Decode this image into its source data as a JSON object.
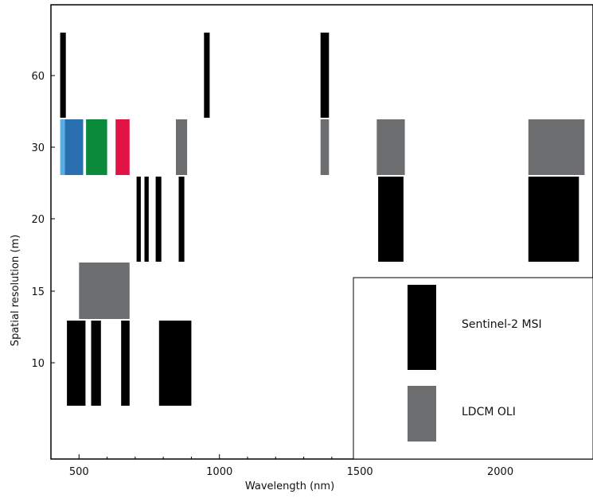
{
  "chart_data": {
    "type": "bar",
    "xlabel": "Wavelength (nm)",
    "ylabel": "Spatial resolution (m)",
    "xlim": [
      400,
      2330
    ],
    "x_ticks": [
      500,
      1000,
      1500,
      2000
    ],
    "y_ticks": [
      10,
      15,
      20,
      30,
      60
    ],
    "grid": false,
    "legend_placement": "bottom-right",
    "colors": {
      "sentinel": "#000000",
      "ldcm": "#6d6e70",
      "coastal": "#5aaee0",
      "blue": "#2a70b0",
      "green": "#0b8a3c",
      "red": "#e21446"
    },
    "series": [
      {
        "name": "Sentinel-2 MSI",
        "bands": [
          {
            "x0": 433,
            "x1": 453,
            "res": 60
          },
          {
            "x0": 945,
            "x1": 965,
            "res": 60
          },
          {
            "x0": 1360,
            "x1": 1390,
            "res": 60
          },
          {
            "x0": 705,
            "x1": 720,
            "res": 20
          },
          {
            "x0": 733,
            "x1": 748,
            "res": 20
          },
          {
            "x0": 773,
            "x1": 793,
            "res": 20
          },
          {
            "x0": 855,
            "x1": 875,
            "res": 20
          },
          {
            "x0": 1565,
            "x1": 1655,
            "res": 20
          },
          {
            "x0": 2100,
            "x1": 2280,
            "res": 20
          },
          {
            "x0": 457,
            "x1": 523,
            "res": 10
          },
          {
            "x0": 543,
            "x1": 578,
            "res": 10
          },
          {
            "x0": 650,
            "x1": 680,
            "res": 10
          },
          {
            "x0": 785,
            "x1": 900,
            "res": 10
          }
        ]
      },
      {
        "name": "LDCM OLI",
        "bands": [
          {
            "x0": 433,
            "x1": 453,
            "res": 30,
            "color": "coastal"
          },
          {
            "x0": 450,
            "x1": 515,
            "res": 30,
            "color": "blue"
          },
          {
            "x0": 525,
            "x1": 600,
            "res": 30,
            "color": "green"
          },
          {
            "x0": 630,
            "x1": 680,
            "res": 30,
            "color": "red"
          },
          {
            "x0": 845,
            "x1": 885,
            "res": 30
          },
          {
            "x0": 1360,
            "x1": 1390,
            "res": 30
          },
          {
            "x0": 1560,
            "x1": 1660,
            "res": 30
          },
          {
            "x0": 2100,
            "x1": 2300,
            "res": 30
          },
          {
            "x0": 500,
            "x1": 680,
            "res": 15
          }
        ]
      }
    ]
  }
}
